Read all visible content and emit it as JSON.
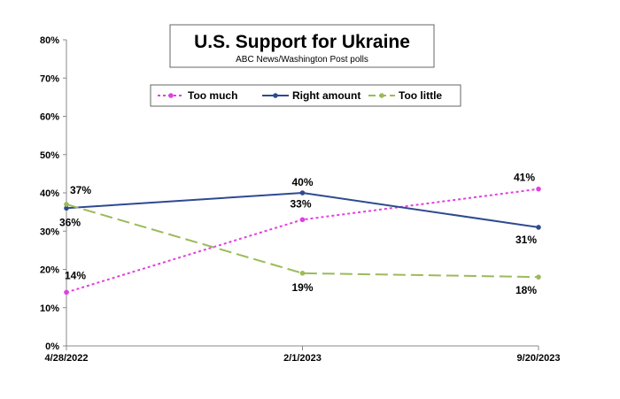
{
  "chart_data": {
    "type": "line",
    "title": "U.S. Support for Ukraine",
    "subtitle": "ABC News/Washington Post polls",
    "categories": [
      "4/28/2022",
      "2/1/2023",
      "9/20/2023"
    ],
    "y_ticks": [
      "0%",
      "10%",
      "20%",
      "30%",
      "40%",
      "50%",
      "60%",
      "70%",
      "80%"
    ],
    "ylim": [
      0,
      80
    ],
    "grid": false,
    "legend_position": "top-center",
    "series": [
      {
        "name": "Too much",
        "values": [
          14,
          33,
          41
        ],
        "labels": [
          "14%",
          "33%",
          "41%"
        ],
        "color": "#e040e0",
        "style": "dotted"
      },
      {
        "name": "Right amount",
        "values": [
          36,
          40,
          31
        ],
        "labels": [
          "36%",
          "40%",
          "31%"
        ],
        "color": "#2e4a8f",
        "style": "solid"
      },
      {
        "name": "Too little",
        "values": [
          37,
          19,
          18
        ],
        "labels": [
          "37%",
          "19%",
          "18%"
        ],
        "color": "#9bbb59",
        "style": "dashed"
      }
    ]
  }
}
